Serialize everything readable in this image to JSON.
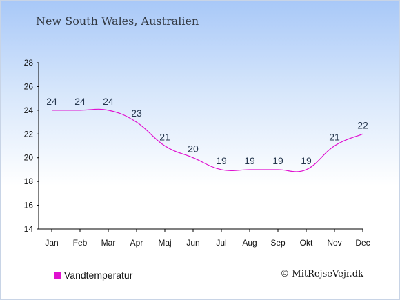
{
  "title": "New South Wales, Australien",
  "credit": "© MitRejseVejr.dk",
  "colors": {
    "series": "#e010d0",
    "axis": "#000000",
    "label": "#25364d"
  },
  "chart_data": {
    "type": "line",
    "categories": [
      "Jan",
      "Feb",
      "Mar",
      "Apr",
      "Maj",
      "Jun",
      "Jul",
      "Aug",
      "Sep",
      "Okt",
      "Nov",
      "Dec"
    ],
    "series": [
      {
        "name": "Vandtemperatur",
        "values": [
          24,
          24,
          24,
          23,
          21,
          20,
          19,
          19,
          19,
          19,
          21,
          22
        ]
      }
    ],
    "data_labels": [
      "24",
      "24",
      "24",
      "23",
      "21",
      "20",
      "19",
      "19",
      "19",
      "19",
      "21",
      "22"
    ],
    "ylim": [
      14,
      28
    ],
    "yticks": [
      14,
      16,
      18,
      20,
      22,
      24,
      26,
      28
    ],
    "grid": false,
    "legend": "bottom-left"
  }
}
